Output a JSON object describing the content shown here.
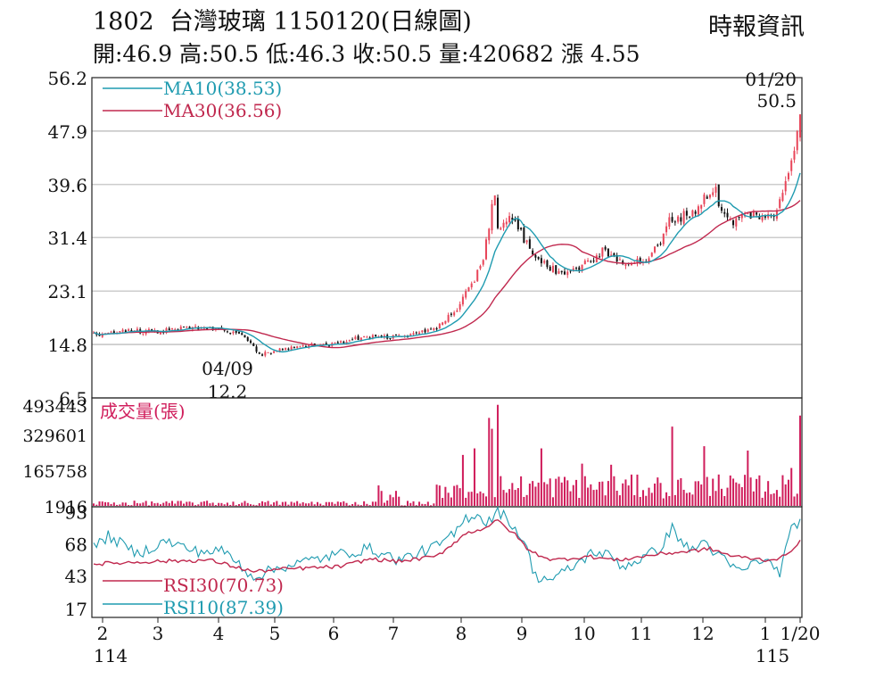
{
  "header": {
    "title": "1802  台灣玻璃 1150120(日線圖)",
    "source": "時報資訊",
    "ohlc": "開:46.9 高:50.5 低:46.3 收:50.5 量:420682 漲 4.55"
  },
  "colors": {
    "up": "#e8465a",
    "down": "#111111",
    "ma10": "#1f9bb0",
    "ma30": "#c0284e",
    "volume": "#d01e5c",
    "rsi30": "#c0284e",
    "rsi10": "#1f9bb0",
    "grid": "#999999"
  },
  "chart_data": [
    {
      "type": "candlestick",
      "name": "price",
      "y_ticks": [
        "56.2",
        "47.9",
        "39.6",
        "31.4",
        "23.1",
        "14.8",
        "6.5"
      ],
      "ylim": [
        6.5,
        56.2
      ],
      "x_ticks": [
        "2",
        "3",
        "4",
        "5",
        "6",
        "7",
        "8",
        "9",
        "10",
        "11",
        "12",
        "1",
        "1/20"
      ],
      "x_sublabels": [
        "114",
        "115"
      ],
      "legend": [
        "MA10(38.53)",
        "MA30(36.56)"
      ],
      "annotations": {
        "high_date": "01/20",
        "high_value": "50.5",
        "low_date": "04/09",
        "low_value": "12.2"
      },
      "anchors": [
        [
          0,
          16.3
        ],
        [
          10,
          17.0
        ],
        [
          20,
          16.8
        ],
        [
          30,
          17.2
        ],
        [
          40,
          17.4
        ],
        [
          50,
          16.6
        ],
        [
          54,
          15.2
        ],
        [
          57,
          13.2
        ],
        [
          60,
          13.5
        ],
        [
          65,
          14.0
        ],
        [
          70,
          14.6
        ],
        [
          75,
          14.7
        ],
        [
          82,
          14.8
        ],
        [
          88,
          15.6
        ],
        [
          95,
          16.1
        ],
        [
          100,
          15.9
        ],
        [
          108,
          16.3
        ],
        [
          115,
          16.8
        ],
        [
          120,
          18.0
        ],
        [
          125,
          20.5
        ],
        [
          128,
          22.6
        ],
        [
          131,
          24.5
        ],
        [
          134,
          28.5
        ],
        [
          136,
          32.5
        ],
        [
          137,
          36.0
        ],
        [
          138,
          38.5
        ],
        [
          139,
          33.0
        ],
        [
          141,
          33.5
        ],
        [
          145,
          34.5
        ],
        [
          148,
          31.0
        ],
        [
          152,
          28.5
        ],
        [
          155,
          27.3
        ],
        [
          160,
          26.0
        ],
        [
          165,
          26.5
        ],
        [
          170,
          27.5
        ],
        [
          175,
          29.2
        ],
        [
          180,
          28.0
        ],
        [
          185,
          27.6
        ],
        [
          190,
          27.8
        ],
        [
          195,
          30.5
        ],
        [
          198,
          34.0
        ],
        [
          203,
          34.8
        ],
        [
          207,
          35.6
        ],
        [
          211,
          38.0
        ],
        [
          214,
          39.0
        ],
        [
          216,
          35.0
        ],
        [
          220,
          33.8
        ],
        [
          225,
          35.0
        ],
        [
          230,
          34.8
        ],
        [
          234,
          34.3
        ],
        [
          238,
          40.3
        ],
        [
          240,
          43.5
        ],
        [
          243,
          50.5
        ]
      ],
      "ma10_label": "MA10",
      "ma30_label": "MA30"
    },
    {
      "type": "bar",
      "name": "volume",
      "title": "成交量(張)",
      "y_ticks": [
        "493443",
        "329601",
        "165758",
        "1916"
      ],
      "ylim": [
        1916,
        493443
      ],
      "peaks": [
        [
          139,
          470000
        ],
        [
          137,
          360000
        ],
        [
          131,
          270000
        ],
        [
          127,
          240000
        ],
        [
          154,
          270000
        ],
        [
          199,
          370000
        ],
        [
          210,
          280000
        ],
        [
          168,
          200000
        ],
        [
          178,
          195000
        ],
        [
          225,
          260000
        ],
        [
          243,
          420682
        ],
        [
          240,
          180000
        ],
        [
          98,
          100000
        ],
        [
          104,
          75000
        ],
        [
          136,
          410000
        ],
        [
          160,
          140000
        ],
        [
          215,
          150000
        ],
        [
          232,
          120000
        ]
      ]
    },
    {
      "type": "line",
      "name": "rsi",
      "y_ticks": [
        "93",
        "68",
        "43",
        "17"
      ],
      "ylim": [
        17,
        93
      ],
      "legend": [
        "RSI30(70.73)",
        "RSI10(87.39)"
      ],
      "rsi30_label": "RSI30",
      "rsi10_label": "RSI10",
      "rsi30_anchors": [
        [
          0,
          52
        ],
        [
          20,
          54
        ],
        [
          40,
          55
        ],
        [
          55,
          46
        ],
        [
          65,
          48
        ],
        [
          75,
          49
        ],
        [
          85,
          50
        ],
        [
          95,
          56
        ],
        [
          105,
          54
        ],
        [
          118,
          58
        ],
        [
          128,
          76
        ],
        [
          134,
          80
        ],
        [
          139,
          86
        ],
        [
          145,
          75
        ],
        [
          150,
          62
        ],
        [
          158,
          55
        ],
        [
          170,
          58
        ],
        [
          180,
          55
        ],
        [
          195,
          60
        ],
        [
          205,
          62
        ],
        [
          212,
          64
        ],
        [
          220,
          58
        ],
        [
          232,
          55
        ],
        [
          238,
          58
        ],
        [
          243,
          70.73
        ]
      ],
      "rsi10_anchors": [
        [
          0,
          65
        ],
        [
          5,
          74
        ],
        [
          15,
          60
        ],
        [
          25,
          70
        ],
        [
          35,
          62
        ],
        [
          45,
          62
        ],
        [
          55,
          42
        ],
        [
          65,
          50
        ],
        [
          75,
          55
        ],
        [
          85,
          60
        ],
        [
          95,
          64
        ],
        [
          105,
          55
        ],
        [
          118,
          66
        ],
        [
          124,
          75
        ],
        [
          128,
          88
        ],
        [
          132,
          92
        ],
        [
          135,
          84
        ],
        [
          139,
          94
        ],
        [
          143,
          86
        ],
        [
          148,
          70
        ],
        [
          152,
          42
        ],
        [
          158,
          40
        ],
        [
          165,
          50
        ],
        [
          172,
          62
        ],
        [
          178,
          58
        ],
        [
          182,
          50
        ],
        [
          190,
          58
        ],
        [
          195,
          65
        ],
        [
          199,
          80
        ],
        [
          205,
          62
        ],
        [
          210,
          70
        ],
        [
          215,
          58
        ],
        [
          222,
          46
        ],
        [
          230,
          56
        ],
        [
          236,
          46
        ],
        [
          240,
          78
        ],
        [
          243,
          87.39
        ]
      ]
    }
  ]
}
